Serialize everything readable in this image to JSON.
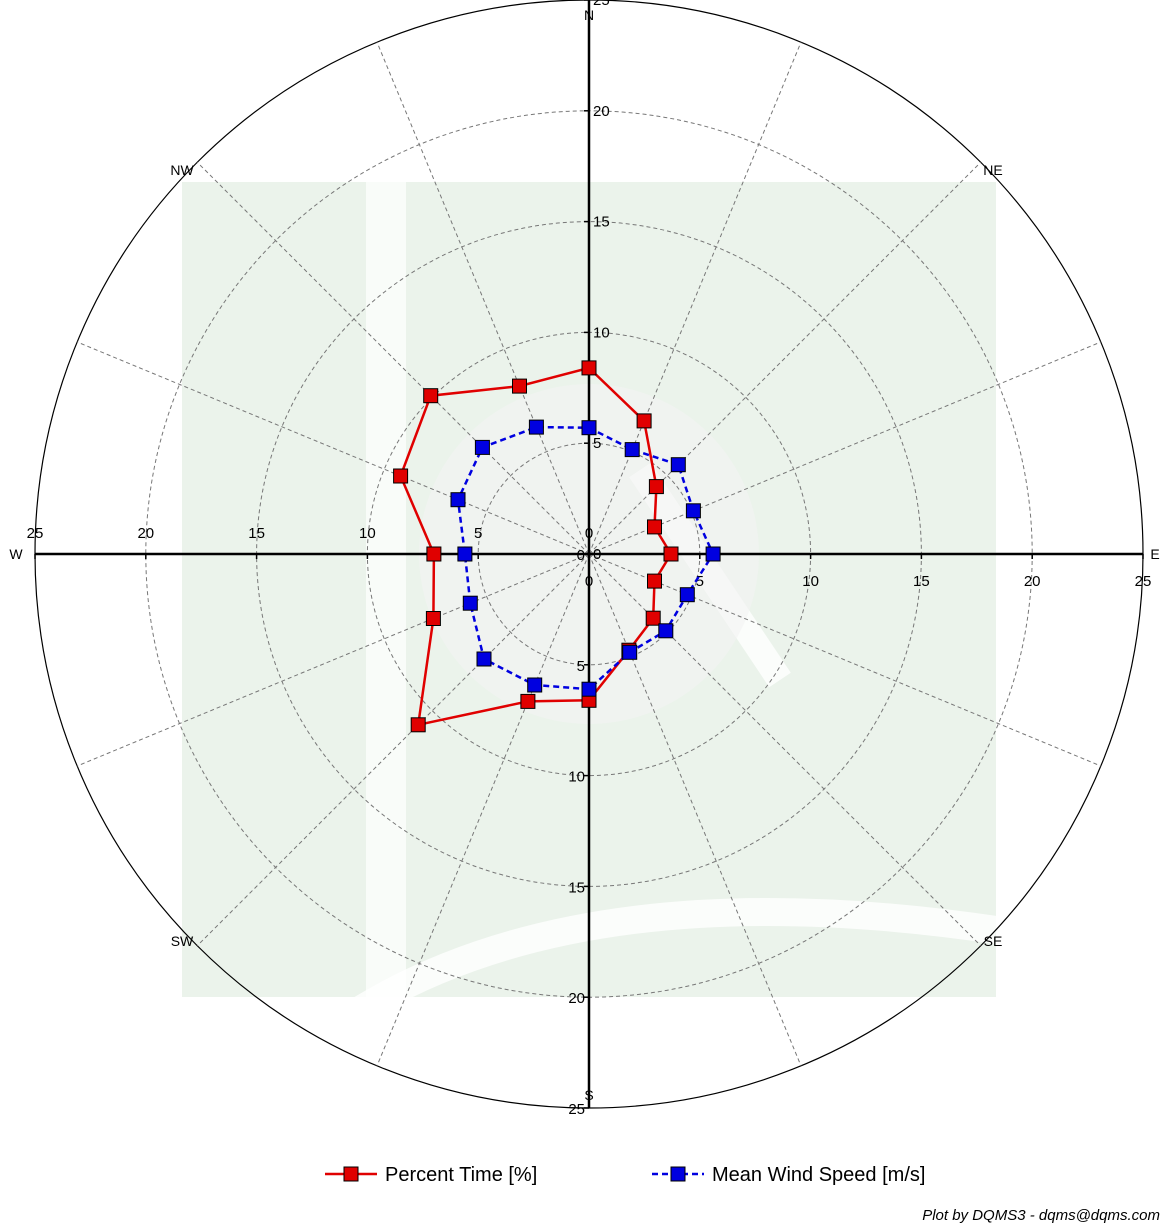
{
  "chart_data": {
    "type": "polar-line",
    "radial_range": [
      0,
      25
    ],
    "radial_ticks": [
      0,
      5,
      10,
      15,
      20,
      25
    ],
    "grid": true,
    "sectors": 16,
    "directions": [
      "N",
      "NE",
      "E",
      "SE",
      "S",
      "SW",
      "W",
      "NW"
    ],
    "angles_deg": [
      0,
      22.5,
      45,
      67.5,
      90,
      112.5,
      135,
      157.5,
      180,
      202.5,
      225,
      247.5,
      270,
      292.5,
      315,
      337.5
    ],
    "legend_position": "bottom",
    "series": [
      {
        "name": "Percent Time [%]",
        "color": "#e00000",
        "line_style": "solid",
        "values": [
          8.4,
          6.5,
          4.3,
          3.2,
          3.7,
          3.2,
          4.1,
          4.7,
          6.6,
          7.2,
          10.9,
          7.6,
          7.0,
          9.2,
          10.1,
          8.2
        ]
      },
      {
        "name": "Mean Wind Speed [m/s]",
        "color": "#0000e0",
        "line_style": "dashed",
        "values": [
          5.7,
          5.1,
          5.7,
          5.1,
          5.6,
          4.8,
          4.9,
          4.8,
          6.1,
          6.4,
          6.7,
          5.8,
          5.6,
          6.4,
          6.8,
          6.2
        ]
      }
    ],
    "watermark_colors": [
      "#ebf3eb",
      "#f3f3f3"
    ],
    "credit": "Plot by DQMS3 - dqms@dqms.com"
  }
}
